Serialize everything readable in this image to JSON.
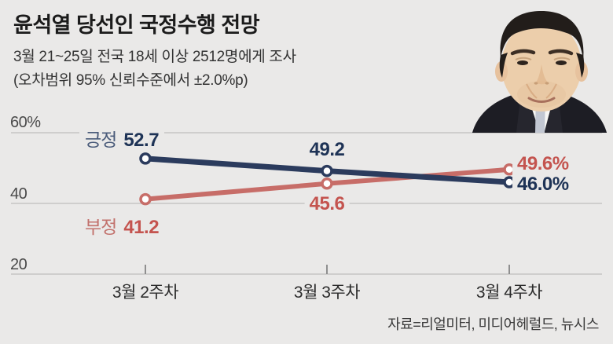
{
  "header": {
    "title": "윤석열 당선인 국정수행 전망",
    "subtitle_line1": "3월 21~25일 전국 18세 이상 2512명에게 조사",
    "subtitle_line2": "(오차범위 95% 신뢰수준에서 ±2.0%p)"
  },
  "source": "자료=리얼미터, 미디어헤럴드, 뉴시스",
  "photo_icon": "yoon-suk-yeol-portrait",
  "colors": {
    "background": "#eae9e8",
    "positive_line": "#2b3b5d",
    "positive_text": "#1e3356",
    "positive_name": "#4a5b7a",
    "negative_line": "#c76d68",
    "negative_text": "#c4544f",
    "negative_name": "#c2716c",
    "grid": "#c6c5c4",
    "tick": "#8f8f8f"
  },
  "chart_data": {
    "type": "line",
    "title": "윤석열 당선인 국정수행 전망",
    "categories": [
      "3월 2주차",
      "3월 3주차",
      "3월 4주차"
    ],
    "series": [
      {
        "name": "긍정",
        "values": [
          52.7,
          49.2,
          46.0
        ],
        "color": "#2b3b5d"
      },
      {
        "name": "부정",
        "values": [
          41.2,
          45.6,
          49.6
        ],
        "color": "#c76d68"
      }
    ],
    "point_labels": {
      "pos": [
        "52.7",
        "49.2",
        "46.0%"
      ],
      "neg": [
        "41.2",
        "45.6",
        "49.6%"
      ]
    },
    "yticks": [
      "60%",
      "40",
      "20"
    ],
    "ytick_values": [
      60,
      40,
      20
    ],
    "ylim": [
      20,
      64
    ],
    "grid": true,
    "legend_position": "inline",
    "marker": "open-circle"
  }
}
